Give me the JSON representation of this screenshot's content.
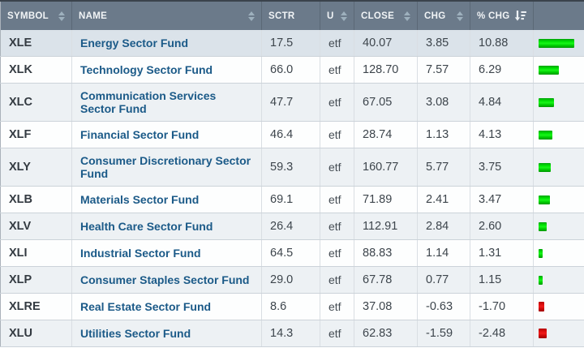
{
  "header": {
    "columns": [
      {
        "label": "SYMBOL",
        "sort_state": "sortable"
      },
      {
        "label": "NAME",
        "sort_state": "sortable"
      },
      {
        "label": "SCTR",
        "sort_state": "none"
      },
      {
        "label": "U",
        "sort_state": "sortable"
      },
      {
        "label": "CLOSE",
        "sort_state": "sortable"
      },
      {
        "label": "CHG",
        "sort_state": "sortable"
      },
      {
        "label": "% CHG",
        "sort_state": "sorted-descending"
      },
      {
        "label": "",
        "sort_state": "none"
      }
    ]
  },
  "rows": [
    {
      "symbol": "XLE",
      "name": "Energy Sector Fund",
      "sctr": "17.5",
      "u": "etf",
      "close": "40.07",
      "chg": "3.85",
      "pct_chg": "10.88"
    },
    {
      "symbol": "XLK",
      "name": "Technology Sector Fund",
      "sctr": "66.0",
      "u": "etf",
      "close": "128.70",
      "chg": "7.57",
      "pct_chg": "6.29"
    },
    {
      "symbol": "XLC",
      "name": "Communication Services Sector Fund",
      "sctr": "47.7",
      "u": "etf",
      "close": "67.05",
      "chg": "3.08",
      "pct_chg": "4.84"
    },
    {
      "symbol": "XLF",
      "name": "Financial Sector Fund",
      "sctr": "46.4",
      "u": "etf",
      "close": "28.74",
      "chg": "1.13",
      "pct_chg": "4.13"
    },
    {
      "symbol": "XLY",
      "name": "Consumer Discretionary Sector Fund",
      "sctr": "59.3",
      "u": "etf",
      "close": "160.77",
      "chg": "5.77",
      "pct_chg": "3.75"
    },
    {
      "symbol": "XLB",
      "name": "Materials Sector Fund",
      "sctr": "69.1",
      "u": "etf",
      "close": "71.89",
      "chg": "2.41",
      "pct_chg": "3.47"
    },
    {
      "symbol": "XLV",
      "name": "Health Care Sector Fund",
      "sctr": "26.4",
      "u": "etf",
      "close": "112.91",
      "chg": "2.84",
      "pct_chg": "2.60"
    },
    {
      "symbol": "XLI",
      "name": "Industrial Sector Fund",
      "sctr": "64.5",
      "u": "etf",
      "close": "88.83",
      "chg": "1.14",
      "pct_chg": "1.31"
    },
    {
      "symbol": "XLP",
      "name": "Consumer Staples Sector Fund",
      "sctr": "29.0",
      "u": "etf",
      "close": "67.78",
      "chg": "0.77",
      "pct_chg": "1.15"
    },
    {
      "symbol": "XLRE",
      "name": "Real Estate Sector Fund",
      "sctr": "8.6",
      "u": "etf",
      "close": "37.08",
      "chg": "-0.63",
      "pct_chg": "-1.70"
    },
    {
      "symbol": "XLU",
      "name": "Utilities Sector Fund",
      "sctr": "14.3",
      "u": "etf",
      "close": "62.83",
      "chg": "-1.59",
      "pct_chg": "-2.48"
    }
  ],
  "colors": {
    "header_background": "#6b7a8a",
    "positive_bar_green": "#00e203",
    "negative_bar_red": "#d40b0b",
    "link_blue": "#1b5a88",
    "stripe_row": "#edf1f4",
    "highlighted_row": "#dbe3ea"
  }
}
